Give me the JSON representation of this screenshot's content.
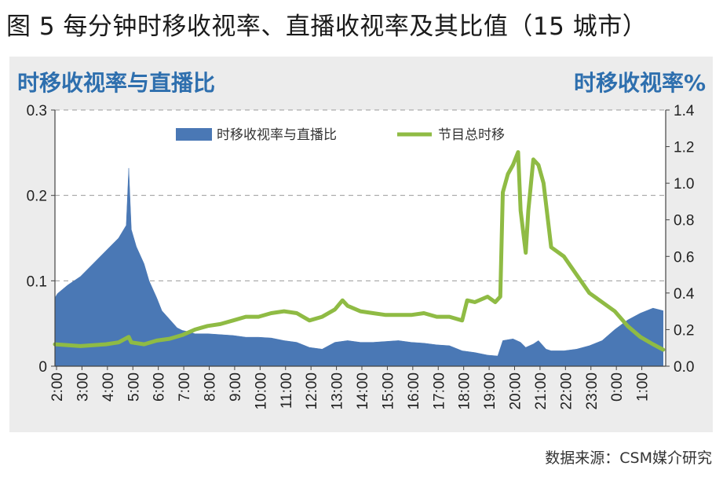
{
  "figure_title": "图 5 每分钟时移收视率、直播收视率及其比值（15 城市）",
  "source_note": "数据来源：CSM媒介研究",
  "colors": {
    "area": "#4a78b5",
    "line": "#8fbb44",
    "panel_bg": "#ececec",
    "title_blue": "#2e6fae"
  },
  "chart_data": {
    "type": "area",
    "ylabel_left": "时移收视率与直播比",
    "ylabel_right": "时移收视率%",
    "legend_placement": "top",
    "grid": true,
    "x_tick_labels": [
      "2:00",
      "3:00",
      "4:00",
      "5:00",
      "6:00",
      "7:00",
      "8:00",
      "9:00",
      "10:00",
      "11:00",
      "12:00",
      "13:00",
      "14:00",
      "15:00",
      "16:00",
      "17:00",
      "18:00",
      "19:00",
      "20:00",
      "21:00",
      "22:00",
      "23:00",
      "0:00",
      "1:00"
    ],
    "y_left": {
      "min": 0,
      "max": 0.3,
      "ticks": [
        "0",
        "0.1",
        "0.2",
        "0.3"
      ]
    },
    "y_right": {
      "min": 0,
      "max": 1.4,
      "ticks": [
        "0.0",
        "0.2",
        "0.4",
        "0.6",
        "0.8",
        "1.0",
        "1.2",
        "1.4"
      ]
    },
    "series": [
      {
        "name": "时移收视率与直播比",
        "kind": "area",
        "axis": "left",
        "x_hours": [
          2.0,
          2.1,
          2.5,
          3.0,
          3.5,
          4.0,
          4.5,
          4.8,
          4.9,
          5.0,
          5.2,
          5.5,
          5.7,
          6.0,
          6.2,
          6.5,
          6.8,
          7.0,
          7.3,
          7.5,
          8.0,
          8.5,
          9.0,
          9.5,
          10.0,
          10.5,
          11.0,
          11.5,
          12.0,
          12.5,
          13.0,
          13.5,
          14.0,
          14.5,
          15.0,
          15.5,
          16.0,
          16.5,
          17.0,
          17.5,
          18.0,
          18.5,
          19.0,
          19.4,
          19.6,
          20.0,
          20.3,
          20.5,
          20.8,
          21.0,
          21.3,
          21.5,
          22.0,
          22.5,
          23.0,
          23.5,
          24.0,
          24.5,
          25.0,
          25.5,
          25.9
        ],
        "values": [
          0.08,
          0.085,
          0.095,
          0.105,
          0.12,
          0.135,
          0.15,
          0.165,
          0.232,
          0.16,
          0.14,
          0.12,
          0.1,
          0.08,
          0.065,
          0.055,
          0.045,
          0.042,
          0.04,
          0.038,
          0.038,
          0.037,
          0.036,
          0.034,
          0.034,
          0.033,
          0.03,
          0.028,
          0.022,
          0.02,
          0.028,
          0.03,
          0.028,
          0.028,
          0.029,
          0.03,
          0.028,
          0.027,
          0.025,
          0.024,
          0.018,
          0.016,
          0.013,
          0.012,
          0.03,
          0.032,
          0.028,
          0.022,
          0.026,
          0.03,
          0.02,
          0.018,
          0.018,
          0.02,
          0.024,
          0.03,
          0.043,
          0.054,
          0.062,
          0.068,
          0.065
        ]
      },
      {
        "name": "节目总时移",
        "kind": "line",
        "axis": "right",
        "x_hours": [
          2.0,
          3.0,
          4.0,
          4.5,
          4.9,
          5.0,
          5.5,
          6.0,
          6.5,
          7.0,
          7.5,
          8.0,
          8.5,
          9.0,
          9.5,
          10.0,
          10.5,
          11.0,
          11.5,
          12.0,
          12.5,
          13.0,
          13.3,
          13.5,
          14.0,
          14.5,
          15.0,
          15.5,
          16.0,
          16.5,
          17.0,
          17.5,
          18.0,
          18.2,
          18.5,
          19.0,
          19.3,
          19.5,
          19.6,
          19.8,
          20.0,
          20.2,
          20.3,
          20.5,
          20.6,
          20.8,
          21.0,
          21.2,
          21.5,
          22.0,
          22.5,
          23.0,
          23.5,
          24.0,
          24.5,
          25.0,
          25.5,
          25.9
        ],
        "values": [
          0.12,
          0.11,
          0.12,
          0.13,
          0.16,
          0.13,
          0.12,
          0.14,
          0.15,
          0.17,
          0.2,
          0.22,
          0.23,
          0.25,
          0.27,
          0.27,
          0.29,
          0.3,
          0.29,
          0.25,
          0.27,
          0.31,
          0.36,
          0.33,
          0.3,
          0.29,
          0.28,
          0.28,
          0.28,
          0.29,
          0.27,
          0.27,
          0.25,
          0.36,
          0.35,
          0.38,
          0.35,
          0.38,
          0.95,
          1.05,
          1.1,
          1.17,
          0.85,
          0.62,
          0.85,
          1.13,
          1.1,
          1.0,
          0.65,
          0.6,
          0.5,
          0.4,
          0.35,
          0.3,
          0.22,
          0.16,
          0.12,
          0.09
        ]
      }
    ]
  }
}
